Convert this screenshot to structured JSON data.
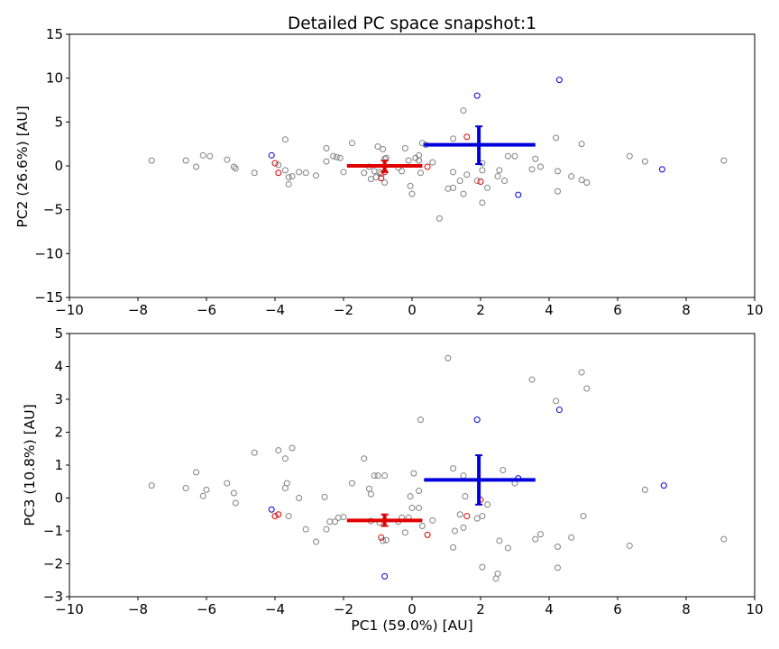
{
  "figure": {
    "title": "Detailed PC space snapshot:1"
  },
  "colors": {
    "grey": "#808080",
    "blue": "#0000dd",
    "red": "#e00000",
    "bg": "#ffffff"
  },
  "chart_data": [
    {
      "type": "scatter",
      "title": "Detailed PC space snapshot:1",
      "xlabel": "",
      "ylabel": "PC2 (26.6%) [AU]",
      "xlim": [
        -10,
        10
      ],
      "ylim": [
        -15,
        15
      ],
      "x_ticks": [
        -10,
        -8,
        -6,
        -4,
        -2,
        0,
        2,
        4,
        6,
        8,
        10
      ],
      "y_ticks": [
        -15,
        -10,
        -5,
        0,
        5,
        10,
        15
      ],
      "x_tick_labels": [
        "−10",
        "−8",
        "−6",
        "−4",
        "−2",
        "0",
        "2",
        "4",
        "6",
        "8",
        "10"
      ],
      "y_tick_labels": [
        "−15",
        "−10",
        "−5",
        "0",
        "5",
        "10",
        "15"
      ],
      "grid": false,
      "series": [
        {
          "color": "grey",
          "points": [
            [
              -7.6,
              0.6
            ],
            [
              -6.6,
              0.6
            ],
            [
              -6.3,
              -0.1
            ],
            [
              -6.1,
              1.2
            ],
            [
              -5.9,
              1.1
            ],
            [
              -5.4,
              0.7
            ],
            [
              -5.2,
              -0.1
            ],
            [
              -5.15,
              -0.3
            ],
            [
              -4.6,
              -0.8
            ],
            [
              -3.9,
              0.1
            ],
            [
              -3.7,
              3.0
            ],
            [
              -3.7,
              -0.5
            ],
            [
              -3.6,
              -1.3
            ],
            [
              -3.6,
              -2.1
            ],
            [
              -3.5,
              -1.2
            ],
            [
              -3.3,
              -0.7
            ],
            [
              -3.1,
              -0.8
            ],
            [
              -2.8,
              -1.1
            ],
            [
              -2.5,
              2.0
            ],
            [
              -2.5,
              0.5
            ],
            [
              -2.3,
              1.1
            ],
            [
              -2.2,
              1.0
            ],
            [
              -2.1,
              0.9
            ],
            [
              -2.0,
              -0.7
            ],
            [
              -1.75,
              2.6
            ],
            [
              -1.4,
              -0.8
            ],
            [
              -1.25,
              -0.1
            ],
            [
              -1.2,
              -1.5
            ],
            [
              -1.1,
              -0.6
            ],
            [
              -1.05,
              -1.3
            ],
            [
              -1.0,
              2.2
            ],
            [
              -0.95,
              -0.7
            ],
            [
              -0.9,
              -0.9
            ],
            [
              -0.85,
              1.9
            ],
            [
              -0.8,
              0.8
            ],
            [
              -0.8,
              -1.9
            ],
            [
              -0.75,
              0.9
            ],
            [
              -0.4,
              -0.2
            ],
            [
              -0.3,
              -0.6
            ],
            [
              -0.2,
              2.0
            ],
            [
              -0.1,
              0.6
            ],
            [
              -0.05,
              -2.3
            ],
            [
              0.0,
              -3.2
            ],
            [
              0.1,
              0.9
            ],
            [
              0.2,
              0.6
            ],
            [
              0.2,
              1.2
            ],
            [
              0.25,
              -0.8
            ],
            [
              0.3,
              2.6
            ],
            [
              0.4,
              2.4
            ],
            [
              0.6,
              0.4
            ],
            [
              0.8,
              -6.0
            ],
            [
              1.05,
              -2.6
            ],
            [
              1.2,
              -2.5
            ],
            [
              1.2,
              3.1
            ],
            [
              1.2,
              -0.7
            ],
            [
              1.4,
              -1.7
            ],
            [
              1.5,
              6.3
            ],
            [
              1.5,
              -3.2
            ],
            [
              1.6,
              -1.0
            ],
            [
              1.9,
              -1.7
            ],
            [
              2.05,
              -0.5
            ],
            [
              2.05,
              0.3
            ],
            [
              2.05,
              -4.2
            ],
            [
              2.2,
              -2.5
            ],
            [
              2.5,
              -1.2
            ],
            [
              2.55,
              -0.5
            ],
            [
              2.7,
              -1.7
            ],
            [
              2.8,
              1.1
            ],
            [
              3.0,
              1.1
            ],
            [
              3.5,
              -0.4
            ],
            [
              3.6,
              0.8
            ],
            [
              3.75,
              -0.1
            ],
            [
              4.2,
              3.2
            ],
            [
              4.25,
              -0.6
            ],
            [
              4.25,
              -2.9
            ],
            [
              4.65,
              -1.2
            ],
            [
              4.95,
              2.5
            ],
            [
              4.95,
              -1.6
            ],
            [
              5.1,
              -1.9
            ],
            [
              6.35,
              1.1
            ],
            [
              6.8,
              0.5
            ],
            [
              9.1,
              0.6
            ]
          ]
        },
        {
          "color": "blue",
          "points": [
            [
              -4.1,
              1.2
            ],
            [
              1.9,
              8.0
            ],
            [
              3.1,
              -3.3
            ],
            [
              4.3,
              9.8
            ],
            [
              7.3,
              -0.4
            ]
          ]
        },
        {
          "color": "red",
          "points": [
            [
              -4.0,
              0.3
            ],
            [
              -3.9,
              -0.8
            ],
            [
              -0.9,
              -1.4
            ],
            [
              -0.8,
              -0.7
            ],
            [
              0.45,
              -0.1
            ],
            [
              1.6,
              3.3
            ],
            [
              2.0,
              -1.8
            ]
          ]
        }
      ],
      "error_bars": [
        {
          "color": "red",
          "x": -0.8,
          "y": 0.0,
          "x_low": -1.9,
          "x_high": 0.3,
          "y_low": -0.7,
          "y_high": 0.6
        },
        {
          "color": "blue",
          "x": 1.95,
          "y": 2.4,
          "x_low": 0.35,
          "x_high": 3.6,
          "y_low": 0.2,
          "y_high": 4.5
        }
      ]
    },
    {
      "type": "scatter",
      "title": "",
      "xlabel": "PC1 (59.0%) [AU]",
      "ylabel": "PC3 (10.8%) [AU]",
      "xlim": [
        -10,
        10
      ],
      "ylim": [
        -3,
        5
      ],
      "x_ticks": [
        -10,
        -8,
        -6,
        -4,
        -2,
        0,
        2,
        4,
        6,
        8,
        10
      ],
      "y_ticks": [
        -3,
        -2,
        -1,
        0,
        1,
        2,
        3,
        4,
        5
      ],
      "x_tick_labels": [
        "−10",
        "−8",
        "−6",
        "−4",
        "−2",
        "0",
        "2",
        "4",
        "6",
        "8",
        "10"
      ],
      "y_tick_labels": [
        "−3",
        "−2",
        "−1",
        "0",
        "1",
        "2",
        "3",
        "4",
        "5"
      ],
      "grid": false,
      "series": [
        {
          "color": "grey",
          "points": [
            [
              -7.6,
              0.38
            ],
            [
              -6.6,
              0.3
            ],
            [
              -6.3,
              0.78
            ],
            [
              -6.1,
              0.06
            ],
            [
              -6.0,
              0.25
            ],
            [
              -5.4,
              0.45
            ],
            [
              -5.2,
              0.15
            ],
            [
              -5.15,
              -0.15
            ],
            [
              -4.6,
              1.38
            ],
            [
              -3.9,
              1.45
            ],
            [
              -3.7,
              1.2
            ],
            [
              -3.7,
              0.3
            ],
            [
              -3.65,
              0.45
            ],
            [
              -3.6,
              -0.55
            ],
            [
              -3.5,
              1.52
            ],
            [
              -3.3,
              0.0
            ],
            [
              -3.1,
              -0.95
            ],
            [
              -2.8,
              -1.33
            ],
            [
              -2.55,
              0.03
            ],
            [
              -2.5,
              -0.95
            ],
            [
              -2.4,
              -0.72
            ],
            [
              -2.25,
              -0.72
            ],
            [
              -2.15,
              -0.6
            ],
            [
              -2.0,
              -0.58
            ],
            [
              -1.75,
              0.45
            ],
            [
              -1.4,
              1.2
            ],
            [
              -1.25,
              0.28
            ],
            [
              -1.2,
              0.12
            ],
            [
              -1.2,
              -0.7
            ],
            [
              -1.1,
              0.68
            ],
            [
              -1.0,
              0.68
            ],
            [
              -0.95,
              -0.75
            ],
            [
              -0.85,
              -1.3
            ],
            [
              -0.8,
              0.68
            ],
            [
              -0.75,
              -1.28
            ],
            [
              -0.4,
              -0.72
            ],
            [
              -0.3,
              -0.6
            ],
            [
              -0.2,
              -1.05
            ],
            [
              -0.1,
              -0.6
            ],
            [
              -0.05,
              0.05
            ],
            [
              0.0,
              -0.3
            ],
            [
              0.05,
              0.75
            ],
            [
              0.2,
              -0.3
            ],
            [
              0.2,
              0.22
            ],
            [
              0.25,
              2.38
            ],
            [
              0.3,
              -0.85
            ],
            [
              0.6,
              -0.68
            ],
            [
              1.05,
              4.25
            ],
            [
              1.2,
              0.9
            ],
            [
              1.2,
              -1.5
            ],
            [
              1.25,
              -1.0
            ],
            [
              1.4,
              -0.5
            ],
            [
              1.5,
              0.68
            ],
            [
              1.5,
              -0.9
            ],
            [
              1.55,
              0.05
            ],
            [
              1.9,
              -0.62
            ],
            [
              2.05,
              -2.1
            ],
            [
              2.05,
              -0.55
            ],
            [
              2.2,
              -0.2
            ],
            [
              2.45,
              -2.45
            ],
            [
              2.5,
              -2.3
            ],
            [
              2.55,
              -1.3
            ],
            [
              2.65,
              0.85
            ],
            [
              2.8,
              -1.52
            ],
            [
              3.0,
              0.45
            ],
            [
              3.5,
              3.6
            ],
            [
              3.6,
              -1.25
            ],
            [
              3.75,
              -1.1
            ],
            [
              4.2,
              2.95
            ],
            [
              4.25,
              -1.48
            ],
            [
              4.25,
              -2.12
            ],
            [
              4.65,
              -1.2
            ],
            [
              4.95,
              3.82
            ],
            [
              5.0,
              -0.55
            ],
            [
              5.1,
              3.33
            ],
            [
              6.35,
              -1.45
            ],
            [
              6.8,
              0.25
            ],
            [
              9.1,
              -1.25
            ]
          ]
        },
        {
          "color": "blue",
          "points": [
            [
              -4.1,
              -0.35
            ],
            [
              -0.8,
              -2.38
            ],
            [
              1.9,
              2.38
            ],
            [
              3.1,
              0.6
            ],
            [
              4.3,
              2.68
            ],
            [
              7.35,
              0.38
            ]
          ]
        },
        {
          "color": "red",
          "points": [
            [
              -4.0,
              -0.55
            ],
            [
              -3.9,
              -0.5
            ],
            [
              -0.9,
              -1.2
            ],
            [
              0.45,
              -1.12
            ],
            [
              1.6,
              -0.55
            ],
            [
              2.0,
              -0.05
            ]
          ]
        }
      ],
      "error_bars": [
        {
          "color": "red",
          "x": -0.8,
          "y": -0.68,
          "x_low": -1.9,
          "x_high": 0.3,
          "y_low": -0.85,
          "y_high": -0.5
        },
        {
          "color": "blue",
          "x": 1.95,
          "y": 0.55,
          "x_low": 0.35,
          "x_high": 3.6,
          "y_low": -0.2,
          "y_high": 1.3
        }
      ]
    }
  ]
}
